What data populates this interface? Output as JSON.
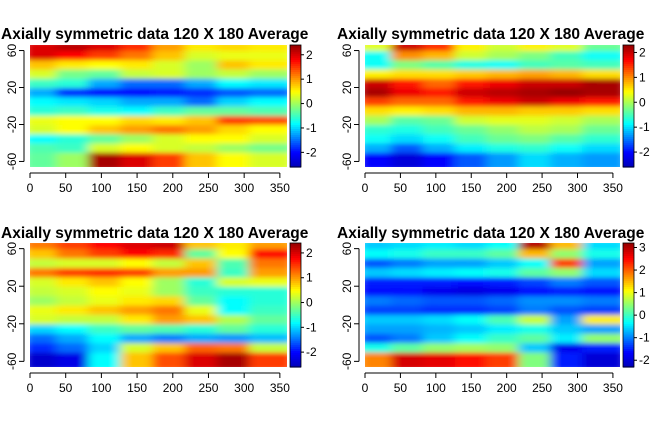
{
  "chart_data": [
    {
      "type": "heatmap",
      "title": "Axially symmetric data 120 X 180 Average",
      "x_ticks": [
        "0",
        "50",
        "100",
        "150",
        "200",
        "250",
        "300",
        "350"
      ],
      "y_ticks": [
        "-60",
        "-20",
        "20",
        "60"
      ],
      "xlim": [
        0,
        360
      ],
      "ylim": [
        -66,
        66
      ],
      "colorbar_ticks": [
        "-2",
        "-1",
        "0",
        "1",
        "2"
      ],
      "colorbar_range": [
        -2.6,
        2.4
      ],
      "colorscale": "rainbow (blue-cyan-yellow-red)",
      "bands": [
        {
          "y": 60,
          "v": [
            2.0,
            2.2,
            2.0,
            1.6,
            1.0,
            0.6,
            0.7,
            0.6
          ]
        },
        {
          "y": 50,
          "v": [
            2.0,
            1.8,
            1.5,
            1.2,
            0.8,
            0.3,
            0.4,
            0.4
          ]
        },
        {
          "y": 40,
          "v": [
            0.8,
            0.6,
            0.5,
            0.6,
            0.3,
            0.0,
            0.8,
            0.6
          ]
        },
        {
          "y": 30,
          "v": [
            0.3,
            -0.2,
            -0.3,
            0.2,
            0.3,
            0.0,
            0.2,
            0.0
          ]
        },
        {
          "y": 20,
          "v": [
            -0.5,
            -0.6,
            -1.2,
            -1.5,
            -1.5,
            -1.2,
            -0.8,
            -0.9
          ]
        },
        {
          "y": 10,
          "v": [
            -1.2,
            -1.8,
            -2.0,
            -2.0,
            -1.9,
            -1.8,
            -1.6,
            -1.5
          ]
        },
        {
          "y": 0,
          "v": [
            -0.8,
            -0.9,
            -1.0,
            -1.2,
            -1.2,
            -1.5,
            -1.0,
            -0.8
          ]
        },
        {
          "y": -10,
          "v": [
            -0.6,
            -0.5,
            -0.7,
            -0.8,
            -0.5,
            -0.3,
            -0.3,
            -0.4
          ]
        },
        {
          "y": -20,
          "v": [
            0.4,
            0.5,
            0.5,
            0.7,
            0.6,
            0.8,
            1.5,
            1.4
          ]
        },
        {
          "y": -30,
          "v": [
            0.3,
            0.5,
            0.8,
            1.0,
            1.2,
            1.0,
            0.7,
            0.5
          ]
        },
        {
          "y": -40,
          "v": [
            -0.8,
            -0.6,
            -0.3,
            0.0,
            0.3,
            0.5,
            0.5,
            0.3
          ]
        },
        {
          "y": -50,
          "v": [
            -0.4,
            -0.5,
            0.3,
            0.5,
            0.3,
            0.2,
            0.0,
            -0.2
          ]
        },
        {
          "y": -60,
          "v": [
            -0.3,
            0.0,
            2.3,
            2.0,
            1.5,
            0.8,
            0.5,
            0.3
          ]
        }
      ]
    },
    {
      "type": "heatmap",
      "title": "Axially symmetric data 120 X 180 Average",
      "x_ticks": [
        "0",
        "50",
        "100",
        "150",
        "200",
        "250",
        "300",
        "350"
      ],
      "y_ticks": [
        "-60",
        "-20",
        "20",
        "60"
      ],
      "xlim": [
        0,
        360
      ],
      "ylim": [
        -66,
        66
      ],
      "colorbar_ticks": [
        "-2",
        "-1",
        "0",
        "1",
        "2"
      ],
      "colorbar_range": [
        -2.6,
        2.3
      ],
      "colorscale": "rainbow (blue-cyan-yellow-red)",
      "bands": [
        {
          "y": 60,
          "v": [
            0.3,
            2.0,
            1.5,
            0.5,
            0.2,
            0.5,
            0.3,
            -0.3
          ]
        },
        {
          "y": 50,
          "v": [
            -0.8,
            1.0,
            0.8,
            0.2,
            0.0,
            -0.2,
            -0.5,
            -0.8
          ]
        },
        {
          "y": 40,
          "v": [
            -0.8,
            -0.2,
            -0.4,
            -0.7,
            -0.8,
            -0.5,
            -0.4,
            -0.5
          ]
        },
        {
          "y": 30,
          "v": [
            0.5,
            0.6,
            0.6,
            0.7,
            0.8,
            0.9,
            0.8,
            0.6
          ]
        },
        {
          "y": 20,
          "v": [
            2.0,
            1.6,
            1.2,
            1.6,
            1.8,
            2.0,
            2.0,
            2.2
          ]
        },
        {
          "y": 10,
          "v": [
            2.2,
            1.8,
            1.6,
            2.0,
            2.1,
            2.2,
            2.3,
            2.2
          ]
        },
        {
          "y": 0,
          "v": [
            1.4,
            1.2,
            1.2,
            1.6,
            1.8,
            2.0,
            1.8,
            1.6
          ]
        },
        {
          "y": -10,
          "v": [
            0.6,
            0.5,
            0.6,
            0.8,
            0.8,
            0.7,
            0.7,
            0.6
          ]
        },
        {
          "y": -20,
          "v": [
            0.0,
            -0.4,
            -0.3,
            0.2,
            0.3,
            0.3,
            0.2,
            0.0
          ]
        },
        {
          "y": -30,
          "v": [
            -0.6,
            -0.7,
            -0.5,
            -0.3,
            -0.1,
            0.1,
            0.0,
            -0.3
          ]
        },
        {
          "y": -40,
          "v": [
            -0.8,
            -1.0,
            -0.8,
            -0.5,
            -0.3,
            -0.2,
            -0.4,
            -0.6
          ]
        },
        {
          "y": -50,
          "v": [
            -1.2,
            -1.6,
            -1.2,
            -0.9,
            -0.7,
            -0.6,
            -0.8,
            -1.0
          ]
        },
        {
          "y": -60,
          "v": [
            -2.0,
            -2.3,
            -2.0,
            -1.6,
            -1.3,
            -1.0,
            -1.2,
            -1.3
          ]
        }
      ]
    },
    {
      "type": "heatmap",
      "title": "Axially symmetric data 120 X 180 Average",
      "x_ticks": [
        "0",
        "50",
        "100",
        "150",
        "200",
        "250",
        "300",
        "350"
      ],
      "y_ticks": [
        "-60",
        "-20",
        "20",
        "60"
      ],
      "xlim": [
        0,
        360
      ],
      "ylim": [
        -66,
        66
      ],
      "colorbar_ticks": [
        "-2",
        "-1",
        "0",
        "1",
        "2"
      ],
      "colorbar_range": [
        -2.6,
        2.4
      ],
      "colorscale": "rainbow (blue-cyan-yellow-red)",
      "bands": [
        {
          "y": 60,
          "v": [
            1.2,
            1.5,
            1.8,
            2.0,
            2.1,
            0.8,
            0.6,
            1.0
          ]
        },
        {
          "y": 50,
          "v": [
            0.8,
            1.2,
            1.5,
            1.8,
            1.6,
            -0.3,
            0.5,
            1.8
          ]
        },
        {
          "y": 40,
          "v": [
            0.2,
            0.3,
            0.3,
            0.5,
            0.2,
            0.8,
            -0.4,
            1.2
          ]
        },
        {
          "y": 30,
          "v": [
            1.2,
            1.5,
            1.6,
            1.5,
            1.0,
            1.0,
            -0.5,
            1.0
          ]
        },
        {
          "y": 20,
          "v": [
            0.3,
            0.6,
            0.8,
            0.5,
            0.0,
            -0.6,
            0.3,
            0.4
          ]
        },
        {
          "y": 10,
          "v": [
            0.2,
            0.3,
            0.5,
            0.4,
            0.0,
            -0.5,
            -0.6,
            -0.6
          ]
        },
        {
          "y": 0,
          "v": [
            0.0,
            0.2,
            0.4,
            0.6,
            0.7,
            -0.3,
            -0.8,
            -0.6
          ]
        },
        {
          "y": -10,
          "v": [
            0.4,
            0.6,
            0.8,
            1.0,
            1.2,
            0.4,
            -0.8,
            -0.5
          ]
        },
        {
          "y": -20,
          "v": [
            0.3,
            0.2,
            0.2,
            0.6,
            1.0,
            0.8,
            0.1,
            -0.3
          ]
        },
        {
          "y": -30,
          "v": [
            -1.0,
            -0.8,
            -0.5,
            -0.3,
            -0.4,
            -0.6,
            -0.3,
            -0.6
          ]
        },
        {
          "y": -40,
          "v": [
            -1.5,
            -1.2,
            -0.8,
            -1.2,
            -1.4,
            -1.2,
            -1.3,
            -1.1
          ]
        },
        {
          "y": -50,
          "v": [
            -1.8,
            -1.5,
            -1.0,
            0.3,
            0.8,
            1.3,
            1.2,
            0.2
          ]
        },
        {
          "y": -60,
          "v": [
            -2.4,
            -2.2,
            -0.8,
            0.8,
            1.4,
            2.0,
            2.3,
            1.5
          ]
        }
      ]
    },
    {
      "type": "heatmap",
      "title": "Axially symmetric data 120 X 180 Average",
      "x_ticks": [
        "0",
        "50",
        "100",
        "150",
        "200",
        "250",
        "300",
        "350"
      ],
      "y_ticks": [
        "-60",
        "-20",
        "20",
        "60"
      ],
      "xlim": [
        0,
        360
      ],
      "ylim": [
        -66,
        66
      ],
      "colorbar_ticks": [
        "-2",
        "-1",
        "0",
        "1",
        "2",
        "3"
      ],
      "colorbar_range": [
        -2.3,
        3.2
      ],
      "colorscale": "rainbow (blue-cyan-yellow-red)",
      "bands": [
        {
          "y": 60,
          "v": [
            -0.6,
            -0.5,
            -0.4,
            -0.5,
            -0.3,
            3.0,
            1.5,
            -0.5
          ]
        },
        {
          "y": 50,
          "v": [
            -0.3,
            -0.2,
            0.0,
            0.0,
            0.2,
            1.5,
            0.5,
            -0.2
          ]
        },
        {
          "y": 40,
          "v": [
            -1.2,
            -1.0,
            -0.8,
            -0.8,
            -0.6,
            -0.3,
            2.2,
            -0.8
          ]
        },
        {
          "y": 30,
          "v": [
            -0.6,
            -0.5,
            -0.4,
            -0.3,
            -0.2,
            0.2,
            0.5,
            -0.5
          ]
        },
        {
          "y": 20,
          "v": [
            -1.5,
            -1.5,
            -1.5,
            -1.6,
            -1.5,
            -1.3,
            -1.0,
            -1.2
          ]
        },
        {
          "y": 10,
          "v": [
            -1.6,
            -1.6,
            -1.8,
            -1.9,
            -1.8,
            -1.6,
            -1.5,
            -1.6
          ]
        },
        {
          "y": 0,
          "v": [
            -1.0,
            -1.1,
            -1.2,
            -1.2,
            -1.1,
            -0.9,
            -0.9,
            -1.0
          ]
        },
        {
          "y": -10,
          "v": [
            -1.3,
            -1.3,
            -1.4,
            -1.4,
            -1.3,
            -1.0,
            -1.2,
            -1.3
          ]
        },
        {
          "y": -20,
          "v": [
            -0.6,
            -0.6,
            -0.5,
            -0.3,
            0.1,
            0.8,
            -0.8,
            1.2
          ]
        },
        {
          "y": -30,
          "v": [
            -0.8,
            -0.8,
            -0.7,
            -0.6,
            -0.4,
            -0.2,
            -0.6,
            -0.8
          ]
        },
        {
          "y": -40,
          "v": [
            -1.2,
            -1.0,
            -0.6,
            -0.3,
            0.0,
            0.2,
            -0.4,
            0.5
          ]
        },
        {
          "y": -50,
          "v": [
            -0.2,
            0.2,
            0.5,
            0.6,
            0.5,
            -0.6,
            -1.8,
            -1.5
          ]
        },
        {
          "y": -60,
          "v": [
            1.8,
            2.8,
            2.7,
            2.5,
            2.2,
            0.4,
            -1.5,
            -2.0
          ]
        }
      ]
    }
  ]
}
